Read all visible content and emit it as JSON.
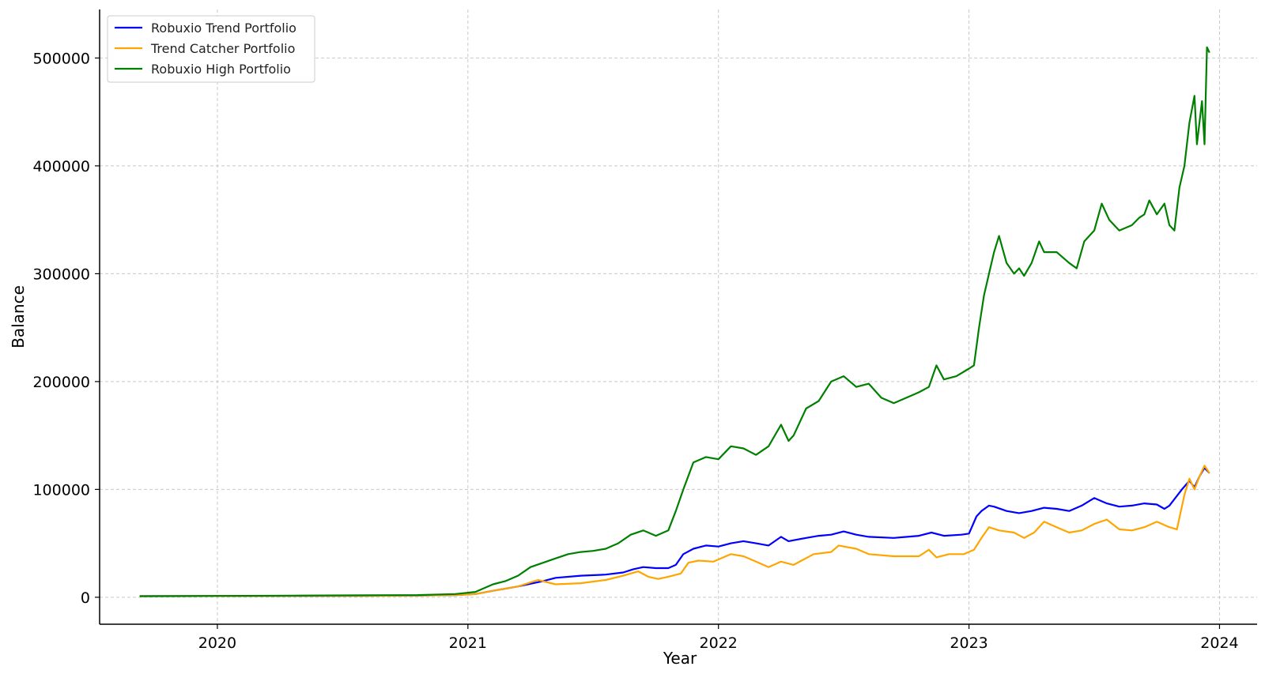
{
  "chart_data": {
    "type": "line",
    "title": "",
    "xlabel": "Year",
    "ylabel": "Balance",
    "xlim": [
      2019.53,
      2024.15
    ],
    "ylim": [
      -25000,
      545000
    ],
    "xticks": [
      2020,
      2021,
      2022,
      2023,
      2024
    ],
    "yticks": [
      0,
      100000,
      200000,
      300000,
      400000,
      500000
    ],
    "grid": true,
    "legend_position": "top-left",
    "series": [
      {
        "name": "Robuxio Trend Portfolio",
        "color": "#0000ff",
        "x": [
          2019.69,
          2020.0,
          2020.3,
          2020.6,
          2020.8,
          2020.95,
          2021.03,
          2021.1,
          2021.2,
          2021.3,
          2021.35,
          2021.45,
          2021.55,
          2021.62,
          2021.66,
          2021.7,
          2021.75,
          2021.8,
          2021.83,
          2021.86,
          2021.9,
          2021.95,
          2022.0,
          2022.05,
          2022.1,
          2022.15,
          2022.2,
          2022.25,
          2022.28,
          2022.35,
          2022.4,
          2022.45,
          2022.5,
          2022.55,
          2022.6,
          2022.7,
          2022.8,
          2022.85,
          2022.9,
          2022.97,
          2023.0,
          2023.03,
          2023.05,
          2023.08,
          2023.1,
          2023.15,
          2023.2,
          2023.25,
          2023.3,
          2023.35,
          2023.4,
          2023.45,
          2023.5,
          2023.55,
          2023.6,
          2023.65,
          2023.7,
          2023.75,
          2023.78,
          2023.8,
          2023.85,
          2023.88,
          2023.9,
          2023.92,
          2023.94,
          2023.96
        ],
        "y": [
          1000,
          1100,
          1200,
          1400,
          1700,
          2000,
          3000,
          6000,
          10000,
          15000,
          18000,
          20000,
          21000,
          23000,
          26000,
          28000,
          27000,
          27000,
          30000,
          40000,
          45000,
          48000,
          47000,
          50000,
          52000,
          50000,
          48000,
          56000,
          52000,
          55000,
          57000,
          58000,
          61000,
          58000,
          56000,
          55000,
          57000,
          60000,
          57000,
          58000,
          59000,
          75000,
          80000,
          85000,
          84000,
          80000,
          78000,
          80000,
          83000,
          82000,
          80000,
          85000,
          92000,
          87000,
          84000,
          85000,
          87000,
          86000,
          82000,
          85000,
          100000,
          108000,
          102000,
          112000,
          120000,
          115000
        ]
      },
      {
        "name": "Trend Catcher Portfolio",
        "color": "#ffa500",
        "x": [
          2019.69,
          2020.0,
          2020.3,
          2020.6,
          2020.8,
          2020.95,
          2021.03,
          2021.1,
          2021.2,
          2021.28,
          2021.35,
          2021.45,
          2021.55,
          2021.62,
          2021.68,
          2021.72,
          2021.76,
          2021.8,
          2021.85,
          2021.88,
          2021.92,
          2021.98,
          2022.05,
          2022.1,
          2022.15,
          2022.2,
          2022.25,
          2022.3,
          2022.38,
          2022.45,
          2022.48,
          2022.55,
          2022.6,
          2022.7,
          2022.8,
          2022.84,
          2022.87,
          2022.92,
          2022.98,
          2023.02,
          2023.05,
          2023.08,
          2023.12,
          2023.18,
          2023.22,
          2023.26,
          2023.3,
          2023.35,
          2023.4,
          2023.45,
          2023.5,
          2023.55,
          2023.6,
          2023.65,
          2023.7,
          2023.75,
          2023.8,
          2023.83,
          2023.86,
          2023.88,
          2023.9,
          2023.92,
          2023.94,
          2023.96
        ],
        "y": [
          1000,
          1100,
          1200,
          1400,
          1700,
          2000,
          3000,
          6000,
          10000,
          16000,
          12000,
          13000,
          16000,
          20000,
          24000,
          19000,
          17000,
          19000,
          22000,
          32000,
          34000,
          33000,
          40000,
          38000,
          33000,
          28000,
          33000,
          30000,
          40000,
          42000,
          48000,
          45000,
          40000,
          38000,
          38000,
          44000,
          37000,
          40000,
          40000,
          44000,
          55000,
          65000,
          62000,
          60000,
          55000,
          60000,
          70000,
          65000,
          60000,
          62000,
          68000,
          72000,
          63000,
          62000,
          65000,
          70000,
          65000,
          63000,
          95000,
          110000,
          100000,
          112000,
          122000,
          115000
        ]
      },
      {
        "name": "Robuxio High Portfolio",
        "color": "#008000",
        "x": [
          2019.69,
          2020.0,
          2020.3,
          2020.6,
          2020.8,
          2020.95,
          2021.03,
          2021.1,
          2021.15,
          2021.2,
          2021.25,
          2021.3,
          2021.35,
          2021.4,
          2021.45,
          2021.5,
          2021.55,
          2021.6,
          2021.65,
          2021.7,
          2021.75,
          2021.8,
          2021.83,
          2021.86,
          2021.9,
          2021.95,
          2022.0,
          2022.05,
          2022.1,
          2022.15,
          2022.2,
          2022.25,
          2022.28,
          2022.3,
          2022.35,
          2022.4,
          2022.45,
          2022.5,
          2022.55,
          2022.6,
          2022.65,
          2022.7,
          2022.75,
          2022.8,
          2022.84,
          2022.87,
          2022.9,
          2022.95,
          2023.0,
          2023.02,
          2023.04,
          2023.06,
          2023.08,
          2023.1,
          2023.12,
          2023.15,
          2023.18,
          2023.2,
          2023.22,
          2023.25,
          2023.28,
          2023.3,
          2023.35,
          2023.4,
          2023.43,
          2023.46,
          2023.5,
          2023.53,
          2023.56,
          2023.6,
          2023.65,
          2023.68,
          2023.7,
          2023.72,
          2023.75,
          2023.78,
          2023.8,
          2023.82,
          2023.84,
          2023.86,
          2023.88,
          2023.9,
          2023.91,
          2023.93,
          2023.94,
          2023.95,
          2023.96
        ],
        "y": [
          1000,
          1200,
          1500,
          1800,
          2000,
          3000,
          5000,
          12000,
          15000,
          20000,
          28000,
          32000,
          36000,
          40000,
          42000,
          43000,
          45000,
          50000,
          58000,
          62000,
          57000,
          62000,
          80000,
          100000,
          125000,
          130000,
          128000,
          140000,
          138000,
          132000,
          140000,
          160000,
          145000,
          150000,
          175000,
          182000,
          200000,
          205000,
          195000,
          198000,
          185000,
          180000,
          185000,
          190000,
          195000,
          215000,
          202000,
          205000,
          212000,
          215000,
          250000,
          280000,
          300000,
          320000,
          335000,
          310000,
          300000,
          305000,
          298000,
          310000,
          330000,
          320000,
          320000,
          310000,
          305000,
          330000,
          340000,
          365000,
          350000,
          340000,
          345000,
          352000,
          355000,
          368000,
          355000,
          365000,
          345000,
          340000,
          380000,
          400000,
          440000,
          465000,
          420000,
          460000,
          420000,
          510000,
          505000
        ]
      }
    ]
  }
}
